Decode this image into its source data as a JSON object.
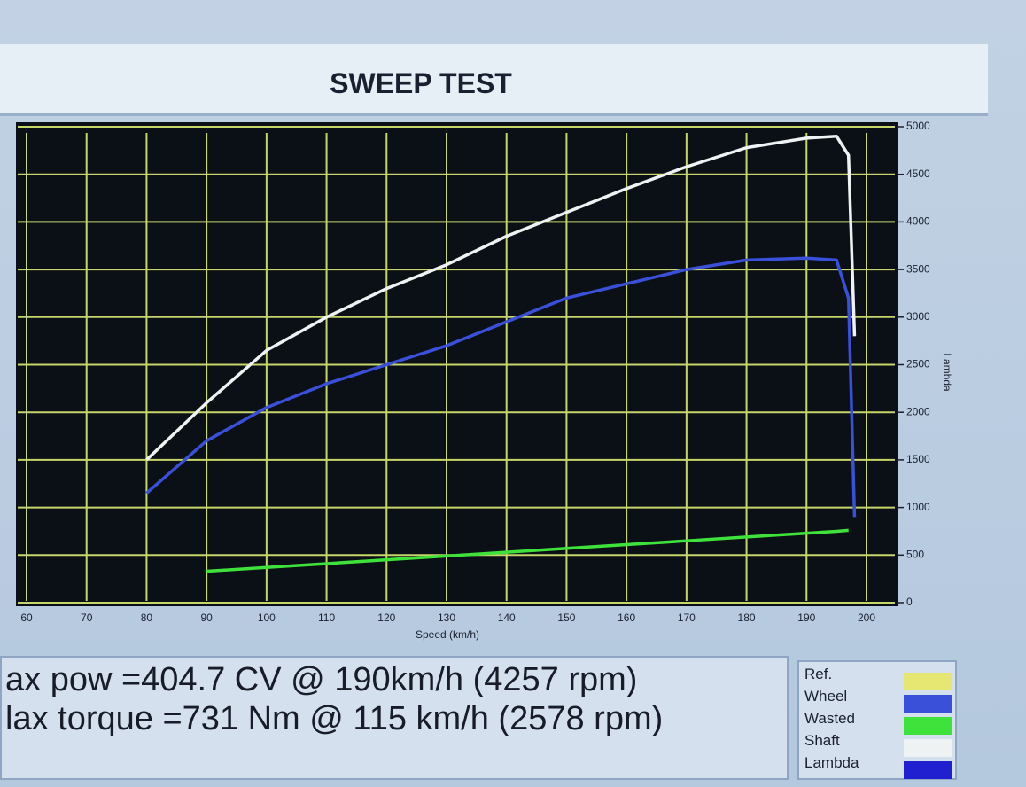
{
  "header": {
    "title": "SWEEP TEST"
  },
  "chart_data": {
    "type": "line",
    "x_label": "Speed (km/h)",
    "y_label": "Lambda",
    "x": [
      80,
      90,
      100,
      110,
      120,
      130,
      140,
      150,
      160,
      170,
      180,
      190,
      195,
      197,
      198
    ],
    "series": [
      {
        "name": "Ref.",
        "color": "#e6e672",
        "values": [
          null,
          null,
          null,
          null,
          null,
          null,
          null,
          null,
          null,
          null,
          null,
          null,
          null,
          null,
          null
        ]
      },
      {
        "name": "Wheel",
        "color": "#3a50d8",
        "values": [
          1150,
          1700,
          2050,
          2300,
          2500,
          2700,
          2950,
          3200,
          3350,
          3500,
          3600,
          3620,
          3600,
          3200,
          900
        ]
      },
      {
        "name": "Wasted",
        "color": "#3ee23a",
        "values": [
          null,
          330,
          370,
          410,
          450,
          490,
          530,
          570,
          610,
          650,
          690,
          730,
          750,
          760,
          null
        ]
      },
      {
        "name": "Shaft",
        "color": "#eef2f2",
        "values": [
          1500,
          2100,
          2650,
          3000,
          3300,
          3550,
          3850,
          4100,
          4350,
          4580,
          4780,
          4880,
          4900,
          4700,
          2800
        ]
      },
      {
        "name": "Lambda",
        "color": "#2020d0",
        "values": [
          null,
          null,
          null,
          null,
          null,
          null,
          null,
          null,
          null,
          null,
          null,
          null,
          null,
          null,
          null
        ]
      }
    ],
    "xlim": [
      60,
      200
    ],
    "xticks": [
      60,
      70,
      80,
      90,
      100,
      110,
      120,
      130,
      140,
      150,
      160,
      170,
      180,
      190,
      200
    ],
    "ylim": [
      0,
      5000
    ],
    "yticks": [
      0,
      500,
      1000,
      1500,
      2000,
      2500,
      3000,
      3500,
      4000,
      4500,
      5000
    ],
    "grid": true,
    "grid_color": "#c6d66a"
  },
  "info": {
    "lines": [
      "ax pow =404.7 CV @ 190km/h (4257 rpm)",
      "lax torque =731 Nm @ 115 km/h (2578 rpm)"
    ]
  }
}
